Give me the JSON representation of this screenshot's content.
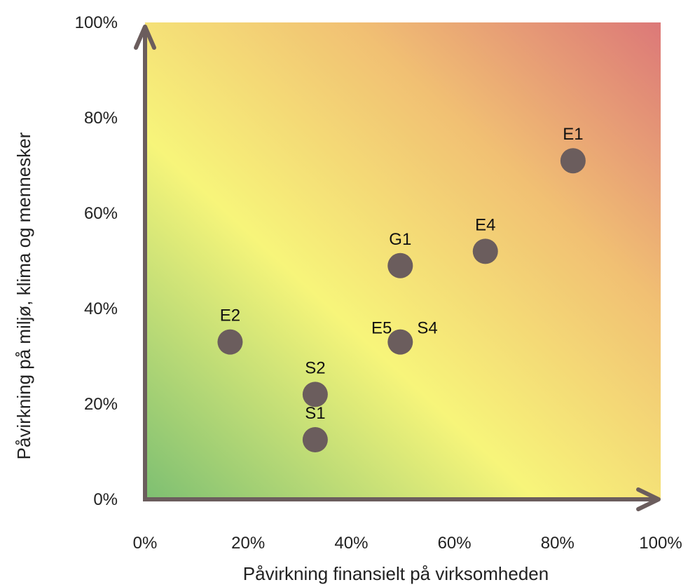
{
  "chart_data": {
    "type": "scatter",
    "title": "",
    "xlabel": "Påvirkning finansielt på virksomheden",
    "ylabel": "Påvirkning på miljø, klima og mennesker",
    "xlim": [
      0,
      100
    ],
    "ylim": [
      0,
      100
    ],
    "x_ticks": [
      "0%",
      "20%",
      "40%",
      "60%",
      "80%",
      "100%"
    ],
    "y_ticks": [
      "0%",
      "20%",
      "40%",
      "60%",
      "80%",
      "100%"
    ],
    "grid": false,
    "background_gradient": [
      "#7dbf72",
      "#f7f57a",
      "#f1c073",
      "#dc7878"
    ],
    "marker_color": "#6b5d5d",
    "axis_color": "#6b5d5d",
    "points": [
      {
        "label": "E1",
        "x": 83,
        "y": 71
      },
      {
        "label": "E4",
        "x": 66,
        "y": 52
      },
      {
        "label": "G1",
        "x": 49.5,
        "y": 49
      },
      {
        "label": "E2",
        "x": 16.5,
        "y": 33
      },
      {
        "label": "E5",
        "x": 49.5,
        "y": 33
      },
      {
        "label": "S4",
        "x": 49.5,
        "y": 33
      },
      {
        "label": "S2",
        "x": 33,
        "y": 22
      },
      {
        "label": "S1",
        "x": 33,
        "y": 12.5
      }
    ]
  }
}
